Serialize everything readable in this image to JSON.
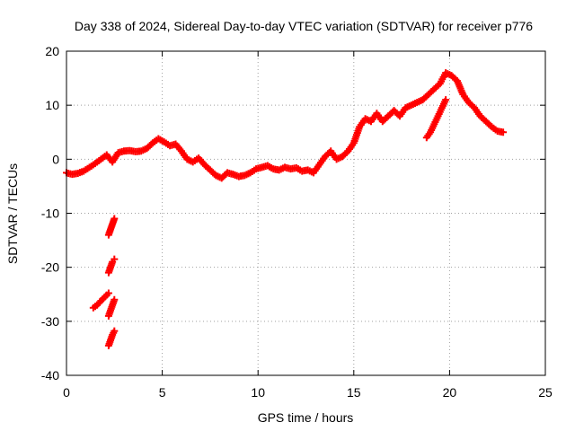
{
  "chart_data": {
    "type": "scatter",
    "title": "Day 338 of 2024, Sidereal Day-to-day VTEC variation (SDTVAR) for receiver p776",
    "xlabel": "GPS time / hours",
    "ylabel": "SDTVAR / TECUs",
    "xlim": [
      0,
      25
    ],
    "ylim": [
      -40,
      20
    ],
    "xticks": [
      0,
      5,
      10,
      15,
      20,
      25
    ],
    "yticks": [
      -40,
      -30,
      -20,
      -10,
      0,
      10,
      20
    ],
    "grid": true,
    "marker": "plus",
    "color": "#ff0000",
    "series": [
      {
        "name": "main trace",
        "x": [
          0.0,
          0.3,
          0.6,
          0.9,
          1.2,
          1.5,
          1.8,
          2.1,
          2.4,
          2.7,
          3.0,
          3.3,
          3.6,
          3.9,
          4.2,
          4.5,
          4.8,
          5.1,
          5.4,
          5.7,
          6.0,
          6.3,
          6.6,
          6.9,
          7.2,
          7.5,
          7.8,
          8.1,
          8.4,
          8.7,
          9.0,
          9.3,
          9.6,
          9.9,
          10.2,
          10.5,
          10.8,
          11.1,
          11.4,
          11.7,
          12.0,
          12.3,
          12.6,
          12.9,
          13.2,
          13.5,
          13.8,
          14.1,
          14.4,
          14.7,
          15.0,
          15.3,
          15.6,
          15.9,
          16.2,
          16.5,
          16.8,
          17.1,
          17.4,
          17.7,
          18.0,
          18.3,
          18.6,
          18.9,
          19.2,
          19.5,
          19.8,
          20.1,
          20.4,
          20.7,
          21.0,
          21.3,
          21.6,
          21.9,
          22.2,
          22.5,
          22.8
        ],
        "y": [
          -2.5,
          -2.8,
          -2.6,
          -2.2,
          -1.5,
          -0.8,
          0.0,
          0.8,
          -0.5,
          1.2,
          1.5,
          1.6,
          1.4,
          1.5,
          2.0,
          3.0,
          3.8,
          3.2,
          2.5,
          2.8,
          1.5,
          0.0,
          -0.5,
          0.2,
          -1.0,
          -2.0,
          -3.0,
          -3.5,
          -2.5,
          -2.8,
          -3.2,
          -3.0,
          -2.5,
          -1.8,
          -1.5,
          -1.2,
          -1.8,
          -2.0,
          -1.5,
          -1.8,
          -1.6,
          -2.2,
          -2.0,
          -2.5,
          -1.0,
          0.5,
          1.5,
          0.0,
          0.5,
          1.5,
          3.0,
          6.0,
          7.5,
          7.0,
          8.5,
          7.0,
          8.0,
          9.0,
          8.0,
          9.5,
          10.0,
          10.5,
          11.0,
          12.0,
          13.0,
          14.0,
          16.0,
          15.5,
          14.5,
          12.0,
          10.5,
          9.5,
          8.0,
          7.0,
          6.0,
          5.2,
          5.0
        ]
      },
      {
        "name": "sub-daily arc 1",
        "x": [
          1.4,
          1.6,
          1.8,
          2.0,
          2.2
        ],
        "y": [
          -27.5,
          -27.0,
          -26.2,
          -25.5,
          -24.8
        ]
      },
      {
        "name": "sub-daily arc 2",
        "x": [
          2.2,
          2.3,
          2.4,
          2.5
        ],
        "y": [
          -14.0,
          -13.0,
          -12.0,
          -11.0
        ]
      },
      {
        "name": "sub-daily arc 3",
        "x": [
          2.2,
          2.3,
          2.4,
          2.5
        ],
        "y": [
          -21.0,
          -20.0,
          -19.0,
          -18.5
        ]
      },
      {
        "name": "sub-daily arc 4",
        "x": [
          2.2,
          2.3,
          2.4,
          2.5
        ],
        "y": [
          -29.0,
          -28.0,
          -27.0,
          -26.0
        ]
      },
      {
        "name": "sub-daily arc 5",
        "x": [
          2.2,
          2.3,
          2.4,
          2.5
        ],
        "y": [
          -34.5,
          -33.5,
          -32.5,
          -31.8
        ]
      },
      {
        "name": "sub-daily arc 6",
        "x": [
          18.8,
          19.0,
          19.2,
          19.4,
          19.6,
          19.8
        ],
        "y": [
          4.0,
          5.0,
          6.5,
          8.0,
          9.5,
          11.0
        ]
      }
    ]
  }
}
